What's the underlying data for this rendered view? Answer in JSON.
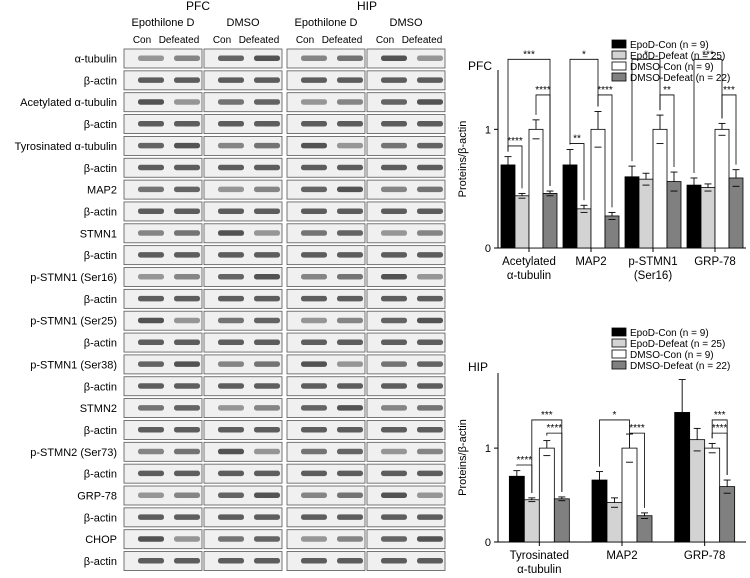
{
  "blots": {
    "region_labels": [
      "PFC",
      "HIP"
    ],
    "treatment_labels": [
      "Epothilone D",
      "DMSO",
      "Epothilone D",
      "DMSO"
    ],
    "group_labels": [
      "Con",
      "Defeated"
    ],
    "rows": [
      {
        "label": "α-tubulin"
      },
      {
        "label": "β-actin"
      },
      {
        "label": "Acetylated α-tubulin"
      },
      {
        "label": "β-actin"
      },
      {
        "label": "Tyrosinated α-tubulin"
      },
      {
        "label": "β-actin"
      },
      {
        "label": "MAP2"
      },
      {
        "label": "β-actin"
      },
      {
        "label": "STMN1"
      },
      {
        "label": "β-actin"
      },
      {
        "label": "p-STMN1 (Ser16)"
      },
      {
        "label": "β-actin"
      },
      {
        "label": "p-STMN1 (Ser25)"
      },
      {
        "label": "β-actin"
      },
      {
        "label": "p-STMN1 (Ser38)"
      },
      {
        "label": "β-actin"
      },
      {
        "label": "STMN2"
      },
      {
        "label": "β-actin"
      },
      {
        "label": "p-STMN2 (Ser73)"
      },
      {
        "label": "β-actin"
      },
      {
        "label": "GRP-78"
      },
      {
        "label": "β-actin"
      },
      {
        "label": "CHOP"
      },
      {
        "label": "β-actin"
      }
    ]
  },
  "chart_data": [
    {
      "type": "bar",
      "title": "PFC",
      "ylabel": "Proteins/β-actin",
      "ylim": [
        0,
        1.5
      ],
      "yticks": [
        0,
        1
      ],
      "categories": [
        [
          "Acetylated",
          "α-tubulin"
        ],
        [
          "MAP2"
        ],
        [
          "p-STMN1",
          "(Ser16)"
        ],
        [
          "GRP-78"
        ]
      ],
      "legend_position": "top-right",
      "series": [
        {
          "name": "EpoD-Con (n = 9)",
          "color": "#000000",
          "values": [
            0.7,
            0.7,
            0.6,
            0.53
          ],
          "errors": [
            0.07,
            0.13,
            0.09,
            0.06
          ]
        },
        {
          "name": "EpoD-Defeat (n = 25)",
          "color": "#d3d3d3",
          "values": [
            0.44,
            0.33,
            0.58,
            0.51
          ],
          "errors": [
            0.02,
            0.03,
            0.05,
            0.03
          ]
        },
        {
          "name": "DMSO-Con (n = 9)",
          "color": "#ffffff",
          "values": [
            1.0,
            1.0,
            1.0,
            1.0
          ],
          "errors": [
            0.08,
            0.15,
            0.12,
            0.05
          ]
        },
        {
          "name": "DMSO-Defeat (n = 22)",
          "color": "#808080",
          "values": [
            0.46,
            0.27,
            0.56,
            0.59
          ],
          "errors": [
            0.02,
            0.03,
            0.08,
            0.07
          ]
        }
      ],
      "annotations": [
        {
          "category": 0,
          "from": 0,
          "to": 3,
          "text": "***",
          "y": 1.59
        },
        {
          "category": 0,
          "from": 0,
          "to": 1,
          "text": "****",
          "y": 0.86
        },
        {
          "category": 0,
          "from": 2,
          "to": 3,
          "text": "****",
          "y": 1.29
        },
        {
          "category": 1,
          "from": 0,
          "to": 2,
          "text": "*",
          "y": 1.59
        },
        {
          "category": 1,
          "from": 0,
          "to": 1,
          "text": "**",
          "y": 0.88
        },
        {
          "category": 1,
          "from": 2,
          "to": 3,
          "text": "****",
          "y": 1.29
        },
        {
          "category": 2,
          "from": 0,
          "to": 2,
          "text": "*",
          "y": 1.59
        },
        {
          "category": 2,
          "from": 2,
          "to": 3,
          "text": "**",
          "y": 1.29
        },
        {
          "category": 3,
          "from": 0,
          "to": 2,
          "text": "***",
          "y": 1.59
        },
        {
          "category": 3,
          "from": 2,
          "to": 3,
          "text": "***",
          "y": 1.29
        }
      ]
    },
    {
      "type": "bar",
      "title": "HIP",
      "ylabel": "Proteins/β-actin",
      "ylim": [
        0,
        1.8
      ],
      "yticks": [
        0,
        1
      ],
      "categories": [
        [
          "Tyrosinated",
          "α-tubulin"
        ],
        [
          "MAP2"
        ],
        [
          "GRP-78"
        ]
      ],
      "legend_position": "top-right",
      "series": [
        {
          "name": "EpoD-Con (n = 9)",
          "color": "#000000",
          "values": [
            0.7,
            0.66,
            1.38
          ],
          "errors": [
            0.06,
            0.09,
            0.35
          ]
        },
        {
          "name": "EpoD-Defeat (n = 25)",
          "color": "#d3d3d3",
          "values": [
            0.45,
            0.42,
            1.09
          ],
          "errors": [
            0.02,
            0.05,
            0.12
          ]
        },
        {
          "name": "DMSO-Con (n = 9)",
          "color": "#ffffff",
          "values": [
            1.0,
            1.0,
            1.0
          ],
          "errors": [
            0.08,
            0.15,
            0.05
          ]
        },
        {
          "name": "DMSO-Defeat (n = 22)",
          "color": "#808080",
          "values": [
            0.46,
            0.28,
            0.59
          ],
          "errors": [
            0.02,
            0.03,
            0.07
          ]
        }
      ],
      "annotations": [
        {
          "category": 0,
          "from": 0,
          "to": 1,
          "text": "****",
          "y": 0.82
        },
        {
          "category": 0,
          "from": 1,
          "to": 3,
          "text": "***",
          "y": 1.3
        },
        {
          "category": 0,
          "from": 2,
          "to": 3,
          "text": "****",
          "y": 1.16
        },
        {
          "category": 1,
          "from": 0,
          "to": 2,
          "text": "*",
          "y": 1.3
        },
        {
          "category": 1,
          "from": 2,
          "to": 3,
          "text": "****",
          "y": 1.16
        },
        {
          "category": 2,
          "from": 2,
          "to": 3,
          "text": "***",
          "y": 1.3
        },
        {
          "category": 2,
          "from": 2,
          "to": 3,
          "text": "****",
          "y": 1.16
        }
      ]
    }
  ]
}
